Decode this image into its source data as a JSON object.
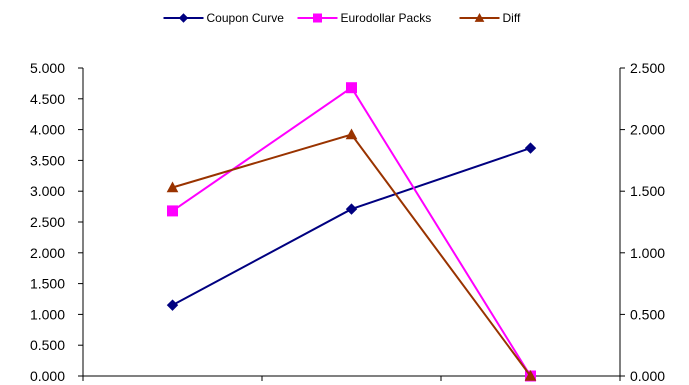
{
  "chart_data": {
    "type": "line",
    "categories": [
      "",
      "",
      ""
    ],
    "series": [
      {
        "name": "Coupon Curve",
        "axis": "left",
        "color": "#000080",
        "marker": "diamond",
        "values": [
          1.15,
          2.71,
          3.7
        ]
      },
      {
        "name": "Eurodollar Packs",
        "axis": "left",
        "color": "#FF00FF",
        "marker": "square",
        "values": [
          2.68,
          4.68,
          0.0
        ]
      },
      {
        "name": "Diff",
        "axis": "right",
        "color": "#993300",
        "marker": "triangle",
        "values": [
          1.53,
          1.96,
          0.0
        ]
      }
    ],
    "y_left": {
      "min": 0,
      "max": 5,
      "step": 0.5,
      "tick_labels": [
        "0.000",
        "0.500",
        "1.000",
        "1.500",
        "2.000",
        "2.500",
        "3.000",
        "3.500",
        "4.000",
        "4.500",
        "5.000"
      ]
    },
    "y_right": {
      "min": 0,
      "max": 2.5,
      "step": 0.5,
      "tick_labels": [
        "0.000",
        "0.500",
        "1.000",
        "1.500",
        "2.000",
        "2.500"
      ]
    },
    "grid": false,
    "legend_position": "top"
  }
}
